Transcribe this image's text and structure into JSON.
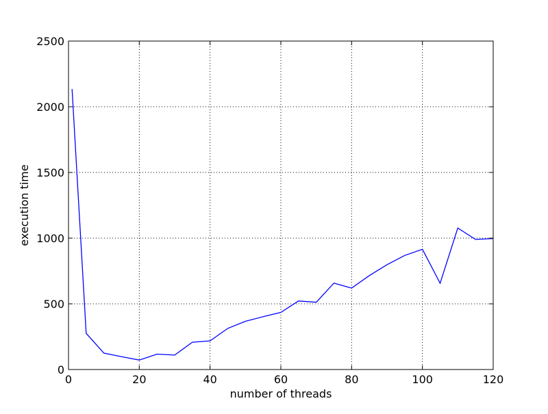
{
  "chart_data": {
    "type": "line",
    "title": "",
    "xlabel": "number of threads",
    "ylabel": "execution time",
    "xlim": [
      0,
      120
    ],
    "ylim": [
      0,
      2500
    ],
    "x_ticks": [
      0,
      20,
      40,
      60,
      80,
      100,
      120
    ],
    "y_ticks": [
      0,
      500,
      1000,
      1500,
      2000,
      2500
    ],
    "grid": true,
    "grid_style": "dotted",
    "legend": "none",
    "series": [
      {
        "color": "#0000ff",
        "x": [
          1,
          5,
          10,
          15,
          20,
          25,
          30,
          35,
          40,
          45,
          50,
          55,
          60,
          65,
          70,
          75,
          80,
          85,
          90,
          95,
          100,
          105,
          110,
          115,
          120
        ],
        "y": [
          2135,
          275,
          125,
          98,
          72,
          117,
          110,
          208,
          218,
          313,
          367,
          402,
          435,
          522,
          512,
          658,
          620,
          715,
          798,
          868,
          915,
          657,
          1077,
          990,
          997
        ]
      }
    ]
  }
}
